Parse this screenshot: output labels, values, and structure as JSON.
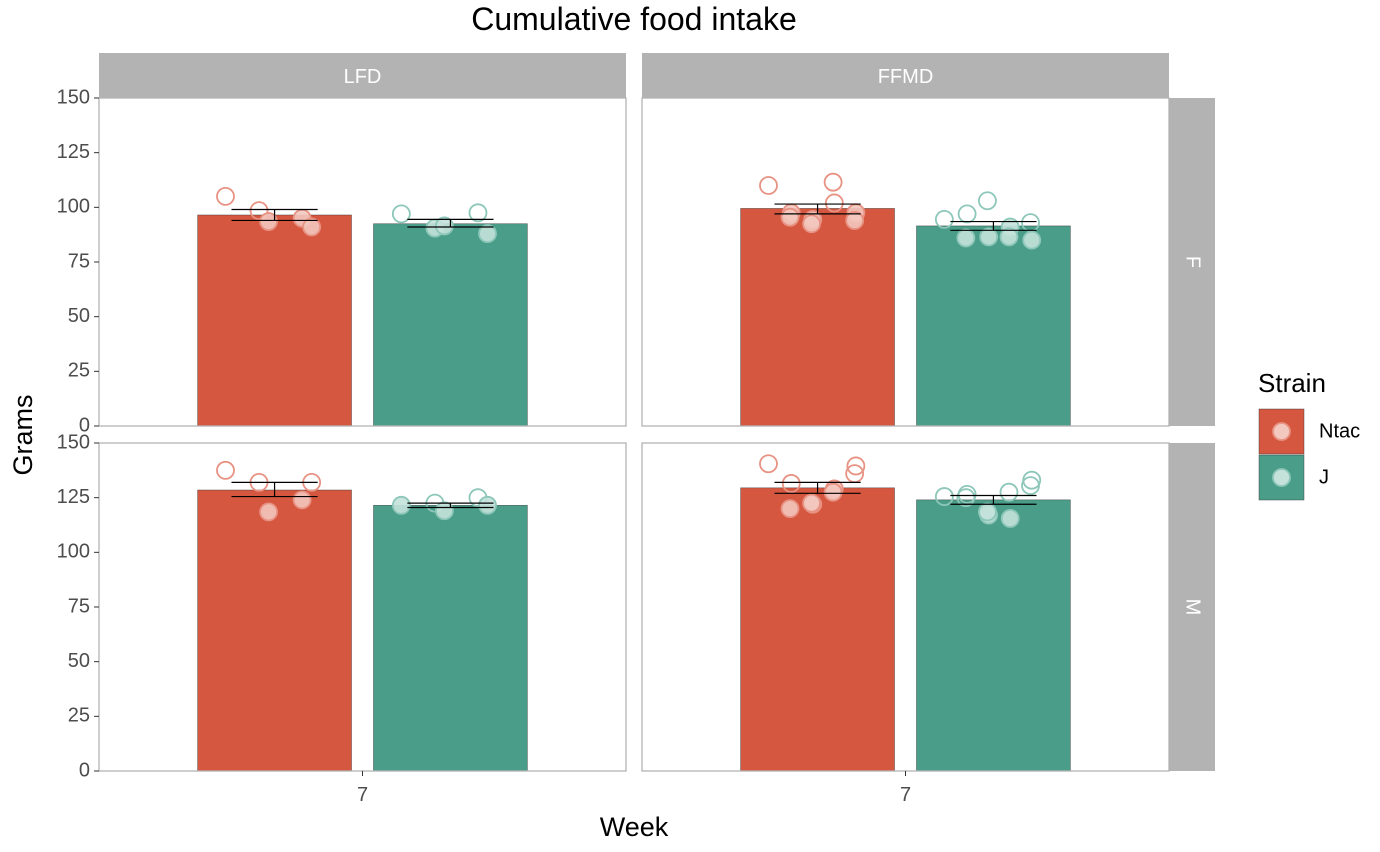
{
  "chart_data": {
    "type": "bar",
    "title": "Cumulative food intake",
    "xlabel": "Week",
    "ylabel": "Grams",
    "ylim": [
      0,
      150
    ],
    "yticks": [
      0,
      25,
      50,
      75,
      100,
      125,
      150
    ],
    "x_tick": "7",
    "column_facets": [
      "LFD",
      "FFMD"
    ],
    "row_facets": [
      "F",
      "M"
    ],
    "legend": {
      "title": "Strain",
      "position": "right",
      "entries": [
        {
          "name": "Ntac",
          "color": "#D55740"
        },
        {
          "name": "J",
          "color": "#4A9D89"
        }
      ]
    },
    "grid": false,
    "panels": [
      {
        "column": "LFD",
        "row": "F",
        "bars": [
          {
            "strain": "Ntac",
            "mean": 96.5,
            "se_low": 94,
            "se_high": 99,
            "points": [
              105,
              98.5,
              93.5,
              95,
              91
            ]
          },
          {
            "strain": "J",
            "mean": 92.5,
            "se_low": 91,
            "se_high": 94.5,
            "points": [
              97,
              90.5,
              91.5,
              97.5,
              88
            ]
          }
        ]
      },
      {
        "column": "FFMD",
        "row": "F",
        "bars": [
          {
            "strain": "Ntac",
            "mean": 99.5,
            "se_low": 97,
            "se_high": 101.5,
            "points": [
              110,
              97.5,
              95.5,
              94.5,
              92.5,
              102,
              111.5,
              97.5,
              94
            ]
          },
          {
            "strain": "J",
            "mean": 91.5,
            "se_low": 89.5,
            "se_high": 93.5,
            "points": [
              94.5,
              97,
              86,
              86.5,
              103,
              91,
              86.5,
              85,
              93
            ]
          }
        ]
      },
      {
        "column": "LFD",
        "row": "M",
        "bars": [
          {
            "strain": "Ntac",
            "mean": 128.5,
            "se_low": 125.5,
            "se_high": 132,
            "points": [
              137.5,
              132,
              118.5,
              124,
              132
            ]
          },
          {
            "strain": "J",
            "mean": 121.5,
            "se_low": 120.5,
            "se_high": 122.5,
            "points": [
              121.5,
              122.5,
              119,
              125,
              121.5
            ]
          }
        ]
      },
      {
        "column": "FFMD",
        "row": "M",
        "bars": [
          {
            "strain": "Ntac",
            "mean": 129.5,
            "se_low": 127,
            "se_high": 132,
            "points": [
              140.5,
              131.5,
              120,
              122,
              122.5,
              129,
              127.5,
              139.5,
              136
            ]
          },
          {
            "strain": "J",
            "mean": 124,
            "se_low": 122,
            "se_high": 126,
            "points": [
              125.5,
              126.5,
              125,
              117,
              118.5,
              115.5,
              127.5,
              133,
              130.5
            ]
          }
        ]
      }
    ]
  }
}
